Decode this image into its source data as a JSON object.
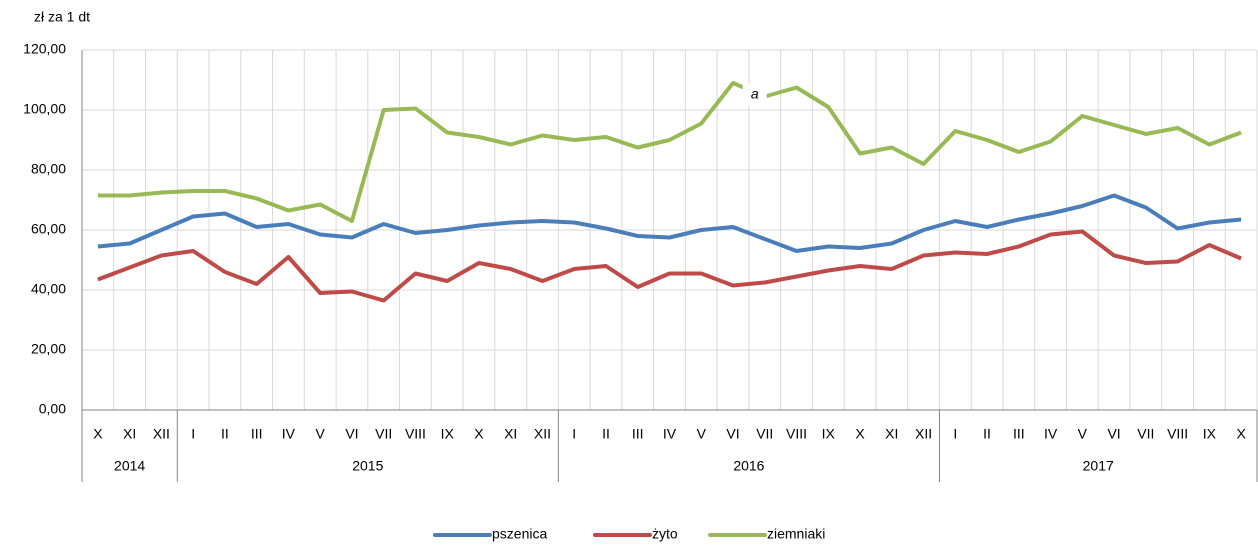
{
  "chart_data": {
    "type": "line",
    "y_axis_label": "zł za 1 dt",
    "categories": [
      "X",
      "XI",
      "XII",
      "I",
      "II",
      "III",
      "IV",
      "V",
      "VI",
      "VII",
      "VIII",
      "IX",
      "X",
      "XI",
      "XII",
      "I",
      "II",
      "III",
      "IV",
      "V",
      "VI",
      "VII",
      "VIII",
      "IX",
      "X",
      "XI",
      "XII",
      "I",
      "II",
      "III",
      "IV",
      "V",
      "VI",
      "VII",
      "VIII",
      "IX",
      "X"
    ],
    "x_groups": [
      "2014",
      "2015",
      "2016",
      "2017"
    ],
    "series": [
      {
        "name": "pszenica",
        "color": "#4a7ebb",
        "values": [
          54.5,
          55.5,
          60,
          64.5,
          65.5,
          61,
          62,
          58.5,
          57.5,
          62,
          59,
          60,
          61.5,
          62.5,
          63,
          62.5,
          60.5,
          58,
          57.5,
          60,
          61,
          57,
          53,
          54.5,
          54,
          55.5,
          60,
          63,
          61,
          63.5,
          65.5,
          68,
          71.5,
          67.5,
          60.5,
          62.5,
          63.5
        ]
      },
      {
        "name": "żyto",
        "color": "#be4b48",
        "values": [
          43.5,
          47.5,
          51.5,
          53,
          46,
          42,
          51,
          39,
          39.5,
          36.5,
          45.5,
          43,
          49,
          47,
          43,
          47,
          48,
          41,
          45.5,
          45.5,
          41.5,
          42.5,
          44.5,
          46.5,
          48,
          47,
          51.5,
          52.5,
          52,
          54.5,
          58.5,
          59.5,
          51.5,
          49,
          49.5,
          55,
          50.5
        ]
      },
      {
        "name": "ziemniaki",
        "color": "#98b954",
        "values": [
          71.5,
          71.5,
          72.5,
          73,
          73,
          70.5,
          66.5,
          68.5,
          63,
          100,
          100.5,
          92.5,
          91,
          88.5,
          91.5,
          90,
          91,
          87.5,
          90,
          95.5,
          109,
          104.5,
          107.5,
          101,
          85.5,
          87.5,
          82,
          93,
          90,
          86,
          89.5,
          98,
          95,
          92,
          94,
          88.5,
          92.5
        ]
      }
    ],
    "annotations": [
      "a"
    ],
    "ylim": [
      0,
      120
    ],
    "yticks": [
      {
        "value": 0,
        "label": "0,00"
      },
      {
        "value": 20,
        "label": "20,00"
      },
      {
        "value": 40,
        "label": "40,00"
      },
      {
        "value": 60,
        "label": "60,00"
      },
      {
        "value": 80,
        "label": "80,00"
      },
      {
        "value": 100,
        "label": "100,00"
      },
      {
        "value": 120,
        "label": "120,00"
      }
    ],
    "grid": true,
    "legend": "bottom"
  }
}
